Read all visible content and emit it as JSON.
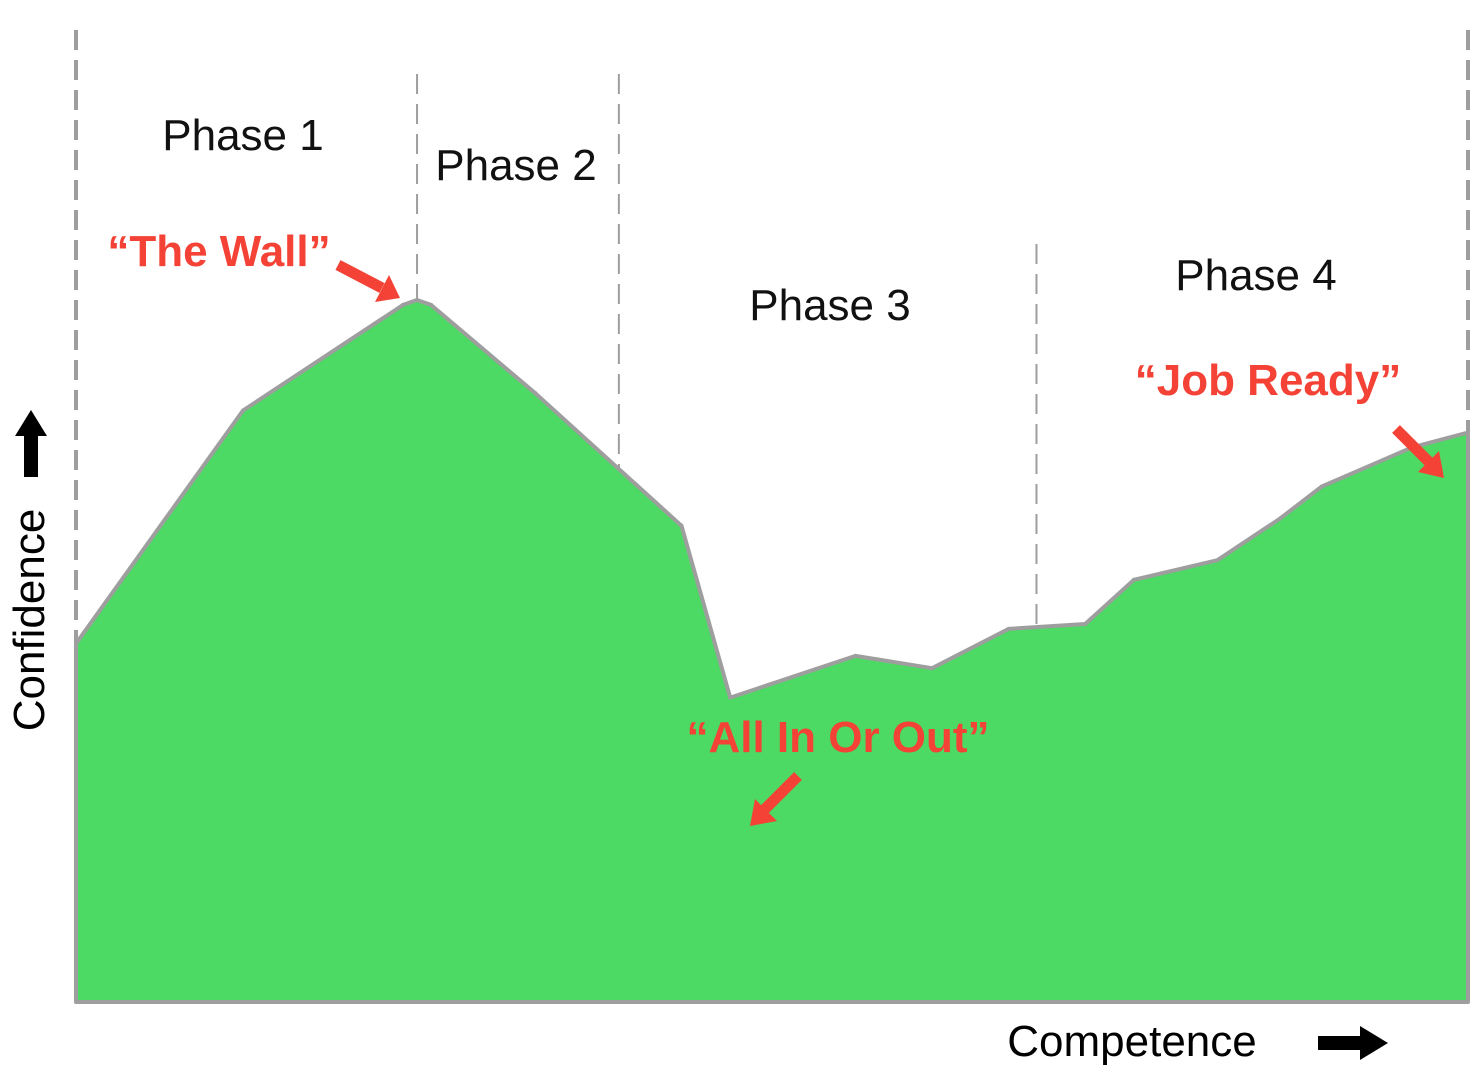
{
  "chart_data": {
    "type": "area",
    "xlabel": "Competence",
    "ylabel": "Confidence",
    "x": [
      0,
      12,
      23.5,
      24.5,
      25.5,
      33,
      43.5,
      47,
      56,
      61.5,
      67,
      72.5,
      76,
      82,
      86.5,
      89.5,
      96,
      100
    ],
    "y": [
      30,
      77.5,
      99,
      100,
      99,
      81,
      54,
      19,
      27.5,
      25,
      33,
      34,
      43,
      47,
      55.5,
      62,
      70,
      73
    ],
    "xlim": [
      0,
      100
    ],
    "ylim": [
      -43,
      100
    ],
    "grid": false,
    "phases": [
      {
        "label": "Phase 1",
        "x_start": 0,
        "x_end": 24.5
      },
      {
        "label": "Phase 2",
        "x_start": 24.5,
        "x_end": 39
      },
      {
        "label": "Phase 3",
        "x_start": 39,
        "x_end": 69
      },
      {
        "label": "Phase 4",
        "x_start": 69,
        "x_end": 100
      }
    ],
    "annotations": [
      {
        "text": "“The Wall”",
        "x": 24.5,
        "y": 100
      },
      {
        "text": "“All In Or Out”",
        "x": 47,
        "y": 19
      },
      {
        "text": "“Job Ready”",
        "x": 100,
        "y": 73
      }
    ],
    "colors": {
      "fill": "#4cd964",
      "outline": "#9e9e9e",
      "callout": "#f44336",
      "divider": "#9e9e9e"
    }
  }
}
